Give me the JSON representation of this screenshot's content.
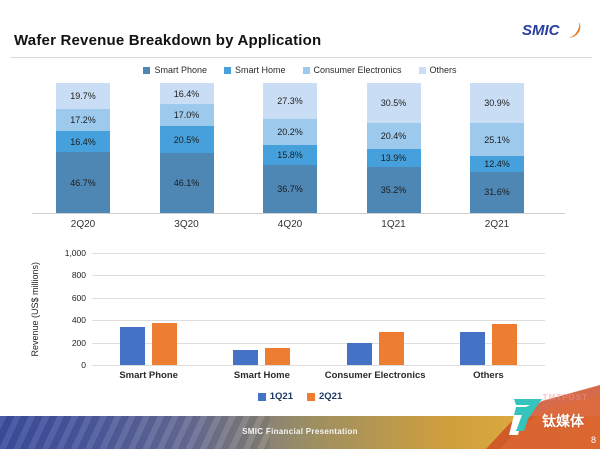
{
  "header": {
    "title": "Wafer Revenue Breakdown by Application",
    "logo_text": "SMIC"
  },
  "colors": {
    "smart_phone": "#4e86b4",
    "smart_home": "#45a0db",
    "consumer_electronics": "#9cc9ec",
    "others": "#c9def4",
    "bar_1q21": "#4472c4",
    "bar_2q21": "#ed7d31",
    "axis_line": "#cfcfcf",
    "gridline": "#dddddd",
    "footer_left": "#3e4f9e",
    "footer_right": "#e9b341",
    "logo_blue": "#2a3f9f",
    "logo_orange": "#e87722"
  },
  "chart_data": [
    {
      "type": "bar",
      "variant": "stacked-percent",
      "title": "",
      "categories": [
        "2Q20",
        "3Q20",
        "4Q20",
        "1Q21",
        "2Q21"
      ],
      "series": [
        {
          "name": "Smart Phone",
          "color": "#4e86b4",
          "values": [
            46.7,
            46.1,
            36.7,
            35.2,
            31.6
          ]
        },
        {
          "name": "Smart Home",
          "color": "#45a0db",
          "values": [
            16.4,
            20.5,
            15.8,
            13.9,
            12.4
          ]
        },
        {
          "name": "Consumer Electronics",
          "color": "#9cc9ec",
          "values": [
            17.2,
            17.0,
            20.2,
            20.4,
            25.1
          ]
        },
        {
          "name": "Others",
          "color": "#c9def4",
          "values": [
            19.7,
            16.4,
            27.3,
            30.5,
            30.9
          ]
        }
      ],
      "value_suffix": "%",
      "ylim": [
        0,
        100
      ],
      "legend_position": "top",
      "grid": false,
      "data_labels": true
    },
    {
      "type": "bar",
      "variant": "grouped",
      "title": "",
      "categories": [
        "Smart Phone",
        "Smart Home",
        "Consumer Electronics",
        "Others"
      ],
      "series": [
        {
          "name": "1Q21",
          "color": "#4472c4",
          "values": [
            340,
            135,
            195,
            295
          ]
        },
        {
          "name": "2Q21",
          "color": "#ed7d31",
          "values": [
            375,
            150,
            295,
            370
          ]
        }
      ],
      "xlabel": "",
      "ylabel": "Revenue (US$  millions)",
      "ylim": [
        0,
        1000
      ],
      "ytick_labels": [
        "1,000",
        "800",
        "600",
        "400",
        "200",
        "0"
      ],
      "legend_position": "bottom",
      "grid": true,
      "data_labels": false
    }
  ],
  "footer": {
    "text": "SMIC Financial Presentation",
    "page_number": "8"
  },
  "watermark": {
    "ghost_text": "TMTPOST",
    "brand_text": "钛媒体"
  }
}
